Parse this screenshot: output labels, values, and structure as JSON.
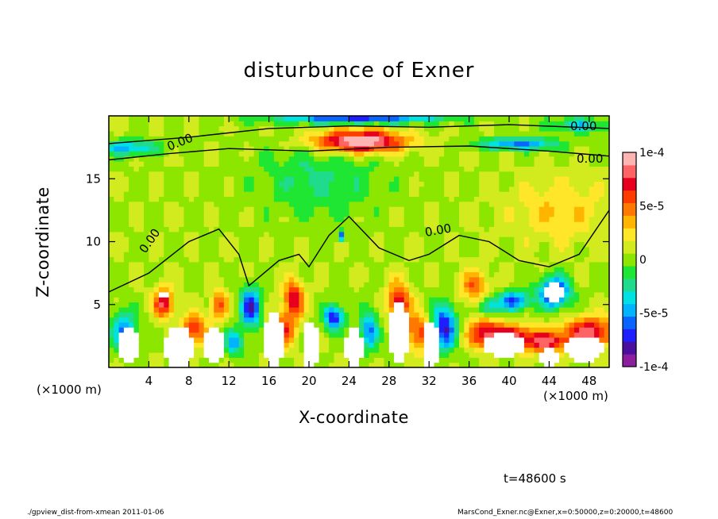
{
  "chart_data": {
    "type": "heatmap",
    "title": "disturbunce of Exner",
    "xlabel": "X-coordinate",
    "ylabel": "Z-coordinate",
    "x_unit": "(×1000 m)",
    "xlim": [
      0,
      50
    ],
    "ylim": [
      0,
      20
    ],
    "xticks": [
      4,
      8,
      12,
      16,
      20,
      24,
      28,
      32,
      36,
      40,
      44,
      48
    ],
    "yticks": [
      5,
      10,
      15
    ],
    "colorbar": {
      "range": [
        -0.0001,
        0.0001
      ],
      "tick_labels": [
        "1e-4",
        "5e-5",
        "0",
        "-5e-5",
        "-1e-4"
      ],
      "tick_values": [
        0.0001,
        5e-05,
        0,
        -5e-05,
        -0.0001
      ]
    },
    "contour_labels": [
      "0.00",
      "0.00",
      "0.00",
      "0.00",
      "0.00"
    ],
    "time_label": "t=48600 s"
  },
  "footer": {
    "left": "./gpview_dist-from-xmean  2011-01-06",
    "right": "MarsCond_Exner.nc@Exner,x=0:50000,z=0:20000,t=48600"
  },
  "palette": [
    "#8e1ea0",
    "#4b0fa0",
    "#1e1eff",
    "#0a64ff",
    "#00b4ff",
    "#00e1e1",
    "#1edc8c",
    "#1ee632",
    "#8ce600",
    "#d2eb1e",
    "#ffe628",
    "#ffb400",
    "#ff7800",
    "#ff3c00",
    "#e6001e",
    "#ff6464",
    "#ffb4b4"
  ]
}
